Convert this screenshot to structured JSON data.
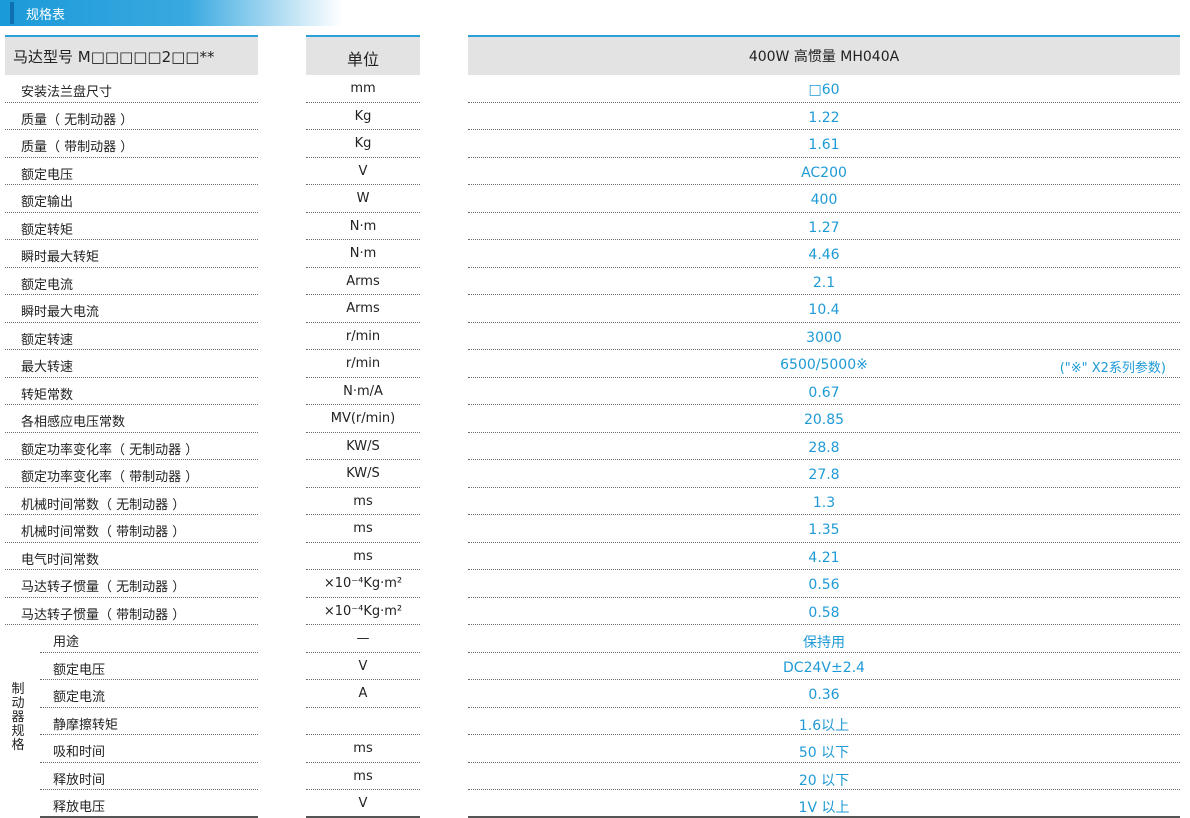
{
  "section_title": "规格表",
  "header": {
    "model": "马达型号  M□□□□□2□□**",
    "unit": "单位",
    "spec": "400W 高惯量 MH040A"
  },
  "rows": [
    {
      "label": "安装法兰盘尺寸",
      "unit": "mm",
      "value": "□60"
    },
    {
      "label": "质量（ 无制动器 ）",
      "unit": "Kg",
      "value": "1.22"
    },
    {
      "label": "质量（ 带制动器 ）",
      "unit": "Kg",
      "value": "1.61"
    },
    {
      "label": "额定电压",
      "unit": "V",
      "value": "AC200"
    },
    {
      "label": "额定输出",
      "unit": "W",
      "value": "400"
    },
    {
      "label": "额定转矩",
      "unit": "N·m",
      "value": "1.27"
    },
    {
      "label": "瞬时最大转矩",
      "unit": "N·m",
      "value": "4.46"
    },
    {
      "label": "额定电流",
      "unit": "Arms",
      "value": "2.1"
    },
    {
      "label": "瞬时最大电流",
      "unit": "Arms",
      "value": "10.4"
    },
    {
      "label": "额定转速",
      "unit": "r/min",
      "value": "3000"
    },
    {
      "label": "最大转速",
      "unit": "r/min",
      "value": "6500/5000※",
      "note": "(\"※\"  X2系列参数)"
    },
    {
      "label": "转矩常数",
      "unit": "N·m/A",
      "value": "0.67"
    },
    {
      "label": "各相感应电压常数",
      "unit": "MV(r/min)",
      "value": "20.85"
    },
    {
      "label": "额定功率变化率（ 无制动器 ）",
      "unit": "KW/S",
      "value": "28.8"
    },
    {
      "label": "额定功率变化率（ 带制动器 ）",
      "unit": "KW/S",
      "value": "27.8"
    },
    {
      "label": "机械时间常数（ 无制动器 ）",
      "unit": "ms",
      "value": "1.3"
    },
    {
      "label": "机械时间常数（ 带制动器 ）",
      "unit": "ms",
      "value": "1.35"
    },
    {
      "label": "电气时间常数",
      "unit": "ms",
      "value": "4.21"
    },
    {
      "label": "马达转子惯量（ 无制动器 ）",
      "unit": "×10⁻⁴Kg·m²",
      "value": "0.56"
    },
    {
      "label": "马达转子惯量（ 带制动器 ）",
      "unit": "×10⁻⁴Kg·m²",
      "value": "0.58"
    }
  ],
  "brake_group_label": "制动器规格",
  "brake_rows": [
    {
      "label": "用途",
      "unit": "—",
      "value": "保持用"
    },
    {
      "label": "额定电压",
      "unit": "V",
      "value": "DC24V±2.4"
    },
    {
      "label": "额定电流",
      "unit": "A",
      "value": "0.36"
    },
    {
      "label": "静摩擦转矩",
      "unit": "",
      "value": "1.6以上"
    },
    {
      "label": "吸和时间",
      "unit": "ms",
      "value": "50 以下"
    },
    {
      "label": "释放时间",
      "unit": "ms",
      "value": "20 以下"
    },
    {
      "label": "释放电压",
      "unit": "V",
      "value": "1V 以上"
    }
  ]
}
